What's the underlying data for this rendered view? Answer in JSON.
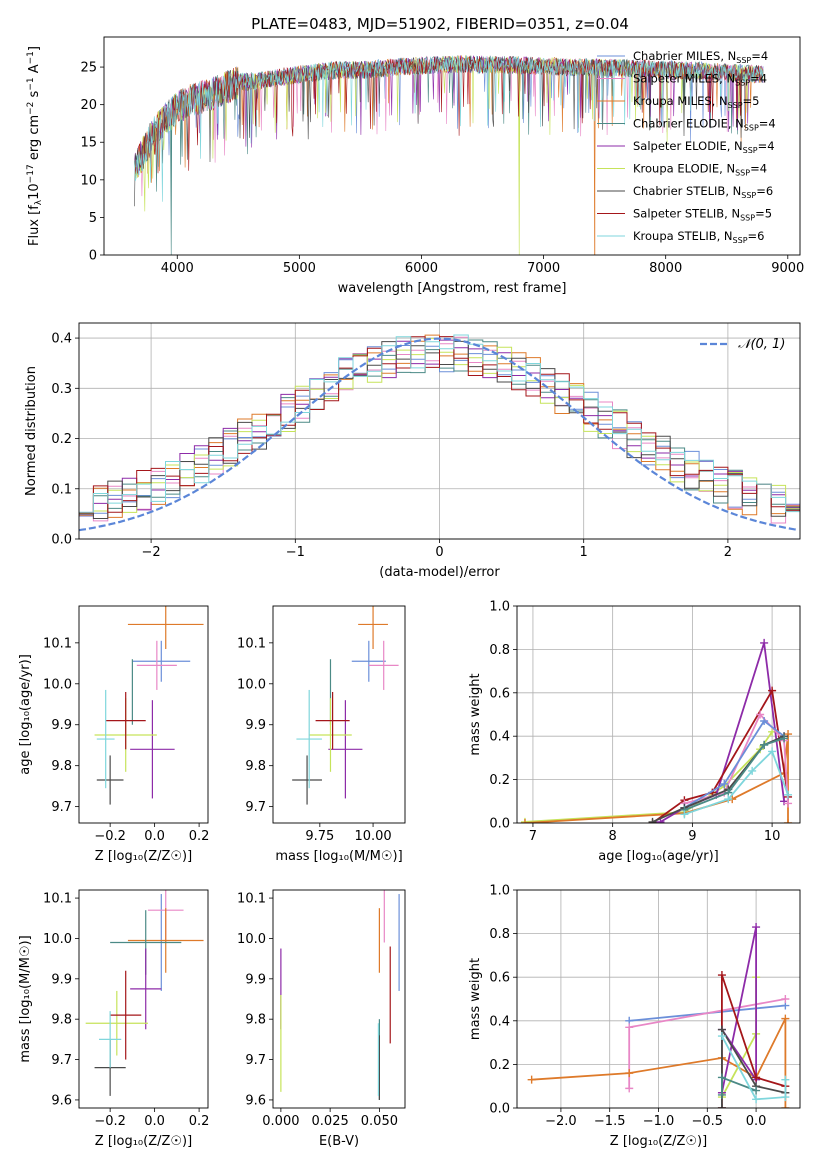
{
  "figure": {
    "title": "PLATE=0483, MJD=51902, FIBERID=0351, z=0.04"
  },
  "models": [
    {
      "key": "chabrier_miles",
      "label": "Chabrier MILES, N",
      "sub": "SSP",
      "suffix": "=4",
      "color": "#6b8fd9"
    },
    {
      "key": "salpeter_miles",
      "label": "Salpeter MILES, N",
      "sub": "SSP",
      "suffix": "=4",
      "color": "#e887c6"
    },
    {
      "key": "kroupa_miles",
      "label": "Kroupa MILES, N",
      "sub": "SSP",
      "suffix": "=5",
      "color": "#de7a2a"
    },
    {
      "key": "chabrier_elodie",
      "label": "Chabrier ELODIE, N",
      "sub": "SSP",
      "suffix": "=4",
      "color": "#4b8a86"
    },
    {
      "key": "salpeter_elodie",
      "label": "Salpeter ELODIE, N",
      "sub": "SSP",
      "suffix": "=4",
      "color": "#8d2ba8"
    },
    {
      "key": "kroupa_elodie",
      "label": "Kroupa ELODIE, N",
      "sub": "SSP",
      "suffix": "=4",
      "color": "#c6e35a"
    },
    {
      "key": "chabrier_stelib",
      "label": "Chabrier STELIB, N",
      "sub": "SSP",
      "suffix": "=6",
      "color": "#4a4a4a"
    },
    {
      "key": "salpeter_stelib",
      "label": "Salpeter STELIB, N",
      "sub": "SSP",
      "suffix": "=5",
      "color": "#a4161a"
    },
    {
      "key": "kroupa_stelib",
      "label": "Kroupa STELIB, N",
      "sub": "SSP",
      "suffix": "=6",
      "color": "#7fd6dc"
    }
  ],
  "chart_data": [
    {
      "id": "spectrum",
      "type": "line",
      "xlabel": "wavelength [Angstrom, rest frame]",
      "ylabel_parts": [
        "Flux [f",
        "λ",
        "10",
        "−17",
        " erg cm",
        "−2",
        " s",
        "−1",
        " A",
        "−1",
        "]"
      ],
      "xlim": [
        3400,
        9100
      ],
      "ylim": [
        0,
        29
      ],
      "xticks": [
        4000,
        5000,
        6000,
        7000,
        8000,
        9000
      ],
      "yticks": [
        0,
        5,
        10,
        15,
        20,
        25
      ],
      "grid": false,
      "legend": "top-right",
      "continuum": {
        "x": [
          3650,
          3700,
          3800,
          3900,
          4000,
          4100,
          4200,
          4300,
          4500,
          4700,
          4900,
          5100,
          5300,
          5500,
          5800,
          6000,
          6300,
          6600,
          6900,
          7200,
          7500,
          7800,
          8100,
          8400,
          8800
        ],
        "y": [
          11.5,
          13.0,
          16.0,
          18.0,
          19.5,
          20.5,
          21.0,
          21.5,
          23.0,
          23.2,
          23.8,
          24.2,
          24.6,
          24.6,
          25.0,
          25.2,
          25.4,
          25.3,
          25.2,
          25.0,
          24.9,
          24.8,
          24.6,
          24.4,
          24.0
        ]
      },
      "dips": [
        {
          "model": "chabrier_elodie",
          "x": 3950,
          "y": 0
        },
        {
          "model": "kroupa_elodie",
          "x": 6800,
          "y": 0
        },
        {
          "model": "kroupa_miles",
          "x": 7420,
          "y": 0
        }
      ]
    },
    {
      "id": "residuals",
      "type": "bar",
      "xlabel": "(data-model)/error",
      "ylabel": "Normed distribution",
      "xlim": [
        -2.5,
        2.5
      ],
      "ylim": [
        0,
        0.43
      ],
      "xticks": [
        -2,
        -1,
        0,
        1,
        2
      ],
      "yticks": [
        0.0,
        0.1,
        0.2,
        0.3,
        0.4
      ],
      "grid": true,
      "legend": "top-right",
      "normal_label": "𝒩(0, 1)",
      "normal_color": "#5b86d8",
      "bin_width": 0.1
    },
    {
      "id": "age_vs_Z",
      "type": "scatter",
      "xlabel": "Z [log₁₀(Z/Z☉)]",
      "ylabel": "age  [log₁₀(age/yr)]",
      "xlim": [
        -0.34,
        0.24
      ],
      "ylim": [
        9.66,
        10.19
      ],
      "xticks": [
        -0.2,
        0.0,
        0.2
      ],
      "yticks": [
        9.7,
        9.8,
        9.9,
        10.0,
        10.1
      ],
      "points": [
        {
          "model": "chabrier_miles",
          "x": 0.03,
          "y": 10.055,
          "xerr": 0.13,
          "yerr": 0.05
        },
        {
          "model": "salpeter_miles",
          "x": 0.01,
          "y": 10.045,
          "xerr": 0.09,
          "yerr": 0.06
        },
        {
          "model": "kroupa_miles",
          "x": 0.05,
          "y": 10.145,
          "xerr": 0.17,
          "yerr": 0.06
        },
        {
          "model": "chabrier_elodie",
          "x": -0.1,
          "y": 9.98,
          "xerr": 0.0,
          "yerr": 0.08
        },
        {
          "model": "salpeter_elodie",
          "x": -0.01,
          "y": 9.84,
          "xerr": 0.1,
          "yerr": 0.12
        },
        {
          "model": "kroupa_elodie",
          "x": -0.13,
          "y": 9.875,
          "xerr": 0.14,
          "yerr": 0.09
        },
        {
          "model": "chabrier_stelib",
          "x": -0.2,
          "y": 9.765,
          "xerr": 0.06,
          "yerr": 0.06
        },
        {
          "model": "salpeter_stelib",
          "x": -0.13,
          "y": 9.91,
          "xerr": 0.09,
          "yerr": 0.07
        },
        {
          "model": "kroupa_stelib",
          "x": -0.22,
          "y": 9.865,
          "xerr": 0.04,
          "yerr": 0.12
        }
      ]
    },
    {
      "id": "age_vs_mass",
      "type": "scatter",
      "xlabel": "mass [log₁₀(M/M☉)]",
      "ylabel": "",
      "xlim": [
        9.53,
        10.15
      ],
      "ylim": [
        9.66,
        10.19
      ],
      "xticks": [
        9.75,
        10.0
      ],
      "xticklabels": [
        "9.75",
        "10.00"
      ],
      "yticks": [
        9.7,
        9.8,
        9.9,
        10.0,
        10.1
      ],
      "points": [
        {
          "model": "chabrier_miles",
          "x": 9.98,
          "y": 10.055,
          "xerr": 0.08,
          "yerr": 0.05
        },
        {
          "model": "salpeter_miles",
          "x": 10.05,
          "y": 10.045,
          "xerr": 0.07,
          "yerr": 0.06
        },
        {
          "model": "kroupa_miles",
          "x": 10.0,
          "y": 10.145,
          "xerr": 0.07,
          "yerr": 0.06
        },
        {
          "model": "chabrier_elodie",
          "x": 9.8,
          "y": 9.98,
          "xerr": 0.0,
          "yerr": 0.08
        },
        {
          "model": "salpeter_elodie",
          "x": 9.87,
          "y": 9.84,
          "xerr": 0.08,
          "yerr": 0.12
        },
        {
          "model": "kroupa_elodie",
          "x": 9.8,
          "y": 9.875,
          "xerr": 0.1,
          "yerr": 0.09
        },
        {
          "model": "chabrier_stelib",
          "x": 9.69,
          "y": 9.765,
          "xerr": 0.07,
          "yerr": 0.06
        },
        {
          "model": "salpeter_stelib",
          "x": 9.81,
          "y": 9.91,
          "xerr": 0.08,
          "yerr": 0.07
        },
        {
          "model": "kroupa_stelib",
          "x": 9.7,
          "y": 9.865,
          "xerr": 0.06,
          "yerr": 0.12
        }
      ]
    },
    {
      "id": "weight_vs_age",
      "type": "line",
      "xlabel": "age  [log₁₀(age/yr)]",
      "ylabel": "mass weight",
      "xlim": [
        6.8,
        10.35
      ],
      "ylim": [
        0,
        1.0
      ],
      "xticks": [
        7,
        8,
        9,
        10
      ],
      "yticks": [
        0.0,
        0.2,
        0.4,
        0.6,
        0.8,
        1.0
      ],
      "grid": true,
      "series": [
        {
          "model": "kroupa_elodie",
          "x": [
            6.9,
            8.9,
            9.4,
            9.85,
            10.0
          ],
          "y": [
            0.005,
            0.05,
            0.17,
            0.34,
            0.42
          ]
        },
        {
          "model": "kroupa_miles",
          "x": [
            6.9,
            8.9,
            9.5,
            10.15,
            10.2,
            10.2
          ],
          "y": [
            0.0,
            0.045,
            0.11,
            0.23,
            0.41,
            0.0
          ]
        },
        {
          "model": "salpeter_elodie",
          "x": [
            8.6,
            8.9,
            9.3,
            9.9,
            10.15
          ],
          "y": [
            0.005,
            0.07,
            0.13,
            0.83,
            0.1
          ]
        },
        {
          "model": "salpeter_stelib",
          "x": [
            8.5,
            8.9,
            9.25,
            10.0,
            10.2
          ],
          "y": [
            0.0,
            0.105,
            0.14,
            0.61,
            0.12
          ]
        },
        {
          "model": "salpeter_miles",
          "x": [
            8.9,
            9.4,
            9.85,
            10.15,
            10.2
          ],
          "y": [
            0.09,
            0.14,
            0.5,
            0.38,
            0.09
          ]
        },
        {
          "model": "chabrier_miles",
          "x": [
            8.9,
            9.4,
            9.9,
            10.15
          ],
          "y": [
            0.07,
            0.18,
            0.47,
            0.4
          ]
        },
        {
          "model": "chabrier_stelib",
          "x": [
            8.5,
            8.9,
            9.45,
            9.9,
            10.15
          ],
          "y": [
            0.005,
            0.07,
            0.155,
            0.36,
            0.4
          ]
        },
        {
          "model": "chabrier_elodie",
          "x": [
            8.9,
            9.45,
            9.9,
            10.15
          ],
          "y": [
            0.06,
            0.14,
            0.36,
            0.39
          ]
        },
        {
          "model": "kroupa_stelib",
          "x": [
            8.9,
            9.45,
            9.75,
            10.0,
            10.2
          ],
          "y": [
            0.04,
            0.11,
            0.24,
            0.33,
            0.13
          ]
        }
      ]
    },
    {
      "id": "mass_vs_Z",
      "type": "scatter",
      "xlabel": "Z [log₁₀(Z/Z☉)]",
      "ylabel": "mass [log₁₀(M/M☉)]",
      "xlim": [
        -0.34,
        0.24
      ],
      "ylim": [
        9.58,
        10.12
      ],
      "xticks": [
        -0.2,
        0.0,
        0.2
      ],
      "yticks": [
        9.6,
        9.7,
        9.8,
        9.9,
        10.0,
        10.1
      ],
      "points": [
        {
          "model": "chabrier_miles",
          "x": 0.03,
          "y": 9.99,
          "xerr": 0.0,
          "yerr": 0.12
        },
        {
          "model": "salpeter_miles",
          "x": 0.05,
          "y": 10.07,
          "xerr": 0.08,
          "yerr": 0.08
        },
        {
          "model": "kroupa_miles",
          "x": 0.05,
          "y": 9.995,
          "xerr": 0.17,
          "yerr": 0.08
        },
        {
          "model": "chabrier_elodie",
          "x": -0.04,
          "y": 9.99,
          "xerr": 0.16,
          "yerr": 0.08
        },
        {
          "model": "salpeter_elodie",
          "x": -0.04,
          "y": 9.875,
          "xerr": 0.07,
          "yerr": 0.1
        },
        {
          "model": "kroupa_elodie",
          "x": -0.17,
          "y": 9.79,
          "xerr": 0.14,
          "yerr": 0.08
        },
        {
          "model": "chabrier_stelib",
          "x": -0.2,
          "y": 9.68,
          "xerr": 0.07,
          "yerr": 0.07
        },
        {
          "model": "salpeter_stelib",
          "x": -0.13,
          "y": 9.81,
          "xerr": 0.07,
          "yerr": 0.11
        },
        {
          "model": "kroupa_stelib",
          "x": -0.2,
          "y": 9.75,
          "xerr": 0.05,
          "yerr": 0.07
        }
      ]
    },
    {
      "id": "mass_vs_ebv",
      "type": "scatter",
      "xlabel": "E(B-V)",
      "ylabel": "",
      "xlim": [
        -0.004,
        0.063
      ],
      "ylim": [
        9.58,
        10.12
      ],
      "xticks": [
        0.0,
        0.025,
        0.05
      ],
      "xticklabels": [
        "0.000",
        "0.025",
        "0.050"
      ],
      "yticks": [
        9.6,
        9.7,
        9.8,
        9.9,
        10.0,
        10.1
      ],
      "points": [
        {
          "model": "chabrier_miles",
          "x": 0.06,
          "y": 9.99,
          "xerr": 0.0,
          "yerr": 0.12
        },
        {
          "model": "salpeter_miles",
          "x": 0.0525,
          "y": 10.07,
          "xerr": 0.0,
          "yerr": 0.08
        },
        {
          "model": "kroupa_miles",
          "x": 0.05,
          "y": 9.995,
          "xerr": 0.0,
          "yerr": 0.08
        },
        {
          "model": "chabrier_elodie",
          "x": 0.05,
          "y": 9.7,
          "xerr": 0.0,
          "yerr": 0.1
        },
        {
          "model": "salpeter_elodie",
          "x": 0.0,
          "y": 9.875,
          "xerr": 0.0,
          "yerr": 0.1
        },
        {
          "model": "kroupa_elodie",
          "x": 0.0,
          "y": 9.74,
          "xerr": 0.0,
          "yerr": 0.12
        },
        {
          "model": "chabrier_stelib",
          "x": 0.05,
          "y": 9.68,
          "xerr": 0.0,
          "yerr": 0.08
        },
        {
          "model": "salpeter_stelib",
          "x": 0.0555,
          "y": 9.86,
          "xerr": 0.0,
          "yerr": 0.12
        },
        {
          "model": "kroupa_stelib",
          "x": 0.0495,
          "y": 9.7,
          "xerr": 0.0,
          "yerr": 0.09
        }
      ]
    },
    {
      "id": "weight_vs_Z",
      "type": "line",
      "xlabel": "Z [log₁₀(Z/Z☉)]",
      "ylabel": "mass weight",
      "xlim": [
        -2.45,
        0.45
      ],
      "ylim": [
        0,
        1.0
      ],
      "xticks": [
        -2.0,
        -1.5,
        -1.0,
        -0.5,
        0.0
      ],
      "yticks": [
        0.0,
        0.2,
        0.4,
        0.6,
        0.8,
        1.0
      ],
      "grid": true,
      "series": [
        {
          "model": "chabrier_miles",
          "x": [
            -1.3,
            0.3
          ],
          "y": [
            0.4,
            0.47
          ]
        },
        {
          "model": "salpeter_miles",
          "x": [
            -1.3,
            -1.3,
            0.3
          ],
          "y": [
            0.09,
            0.37,
            0.5
          ]
        },
        {
          "model": "kroupa_miles",
          "x": [
            -2.3,
            -1.3,
            -0.35,
            0.0,
            0.3,
            0.3
          ],
          "y": [
            0.13,
            0.16,
            0.23,
            0.14,
            0.41,
            0.0
          ]
        },
        {
          "model": "kroupa_elodie",
          "x": [
            -0.35,
            0.0,
            0.0
          ],
          "y": [
            0.05,
            0.34,
            0.6
          ]
        },
        {
          "model": "salpeter_elodie",
          "x": [
            -0.35,
            0.0,
            0.0,
            -0.35
          ],
          "y": [
            0.07,
            0.83,
            0.13,
            0.36
          ]
        },
        {
          "model": "salpeter_stelib",
          "x": [
            -0.35,
            -0.35,
            0.0,
            0.3
          ],
          "y": [
            0.0,
            0.61,
            0.14,
            0.1
          ]
        },
        {
          "model": "chabrier_stelib",
          "x": [
            -0.35,
            -0.35,
            0.0,
            0.3
          ],
          "y": [
            0.0,
            0.36,
            0.1,
            0.07
          ]
        },
        {
          "model": "chabrier_elodie",
          "x": [
            -0.35,
            -0.35,
            0.0
          ],
          "y": [
            0.06,
            0.14,
            0.08
          ]
        },
        {
          "model": "kroupa_stelib",
          "x": [
            -0.35,
            0.0,
            0.3,
            0.3
          ],
          "y": [
            0.33,
            0.04,
            0.05,
            0.13
          ]
        }
      ]
    }
  ]
}
